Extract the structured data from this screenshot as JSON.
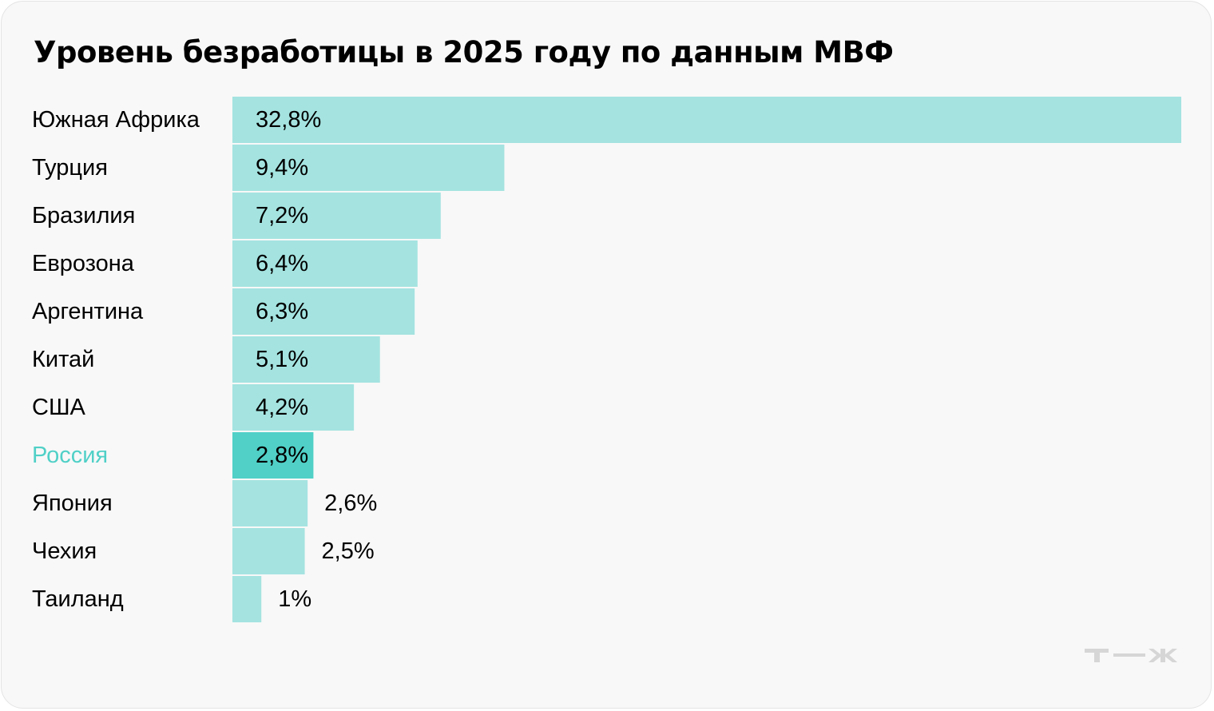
{
  "chart_data": {
    "type": "bar",
    "orientation": "horizontal",
    "title": "Уровень безработицы в 2025 году по данным МВФ",
    "categories": [
      "Южная Африка",
      "Турция",
      "Бразилия",
      "Еврозона",
      "Аргентина",
      "Китай",
      "США",
      "Россия",
      "Япония",
      "Чехия",
      "Таиланд"
    ],
    "values": [
      32.8,
      9.4,
      7.2,
      6.4,
      6.3,
      5.1,
      4.2,
      2.8,
      2.6,
      2.5,
      1.0
    ],
    "value_labels": [
      "32,8%",
      "9,4%",
      "7,2%",
      "6,4%",
      "6,3%",
      "5,1%",
      "4,2%",
      "2,8%",
      "2,6%",
      "2,5%",
      "1%"
    ],
    "highlight": "Россия",
    "xlim": [
      0,
      32.8
    ],
    "grid": false,
    "colors": {
      "bar": "#a4e3e0",
      "bar_highlight": "#50d0c7",
      "label_highlight": "#50d0c7",
      "text": "#000000",
      "background": "#f8f8f8"
    }
  },
  "logo": {
    "text": "т—ж"
  }
}
